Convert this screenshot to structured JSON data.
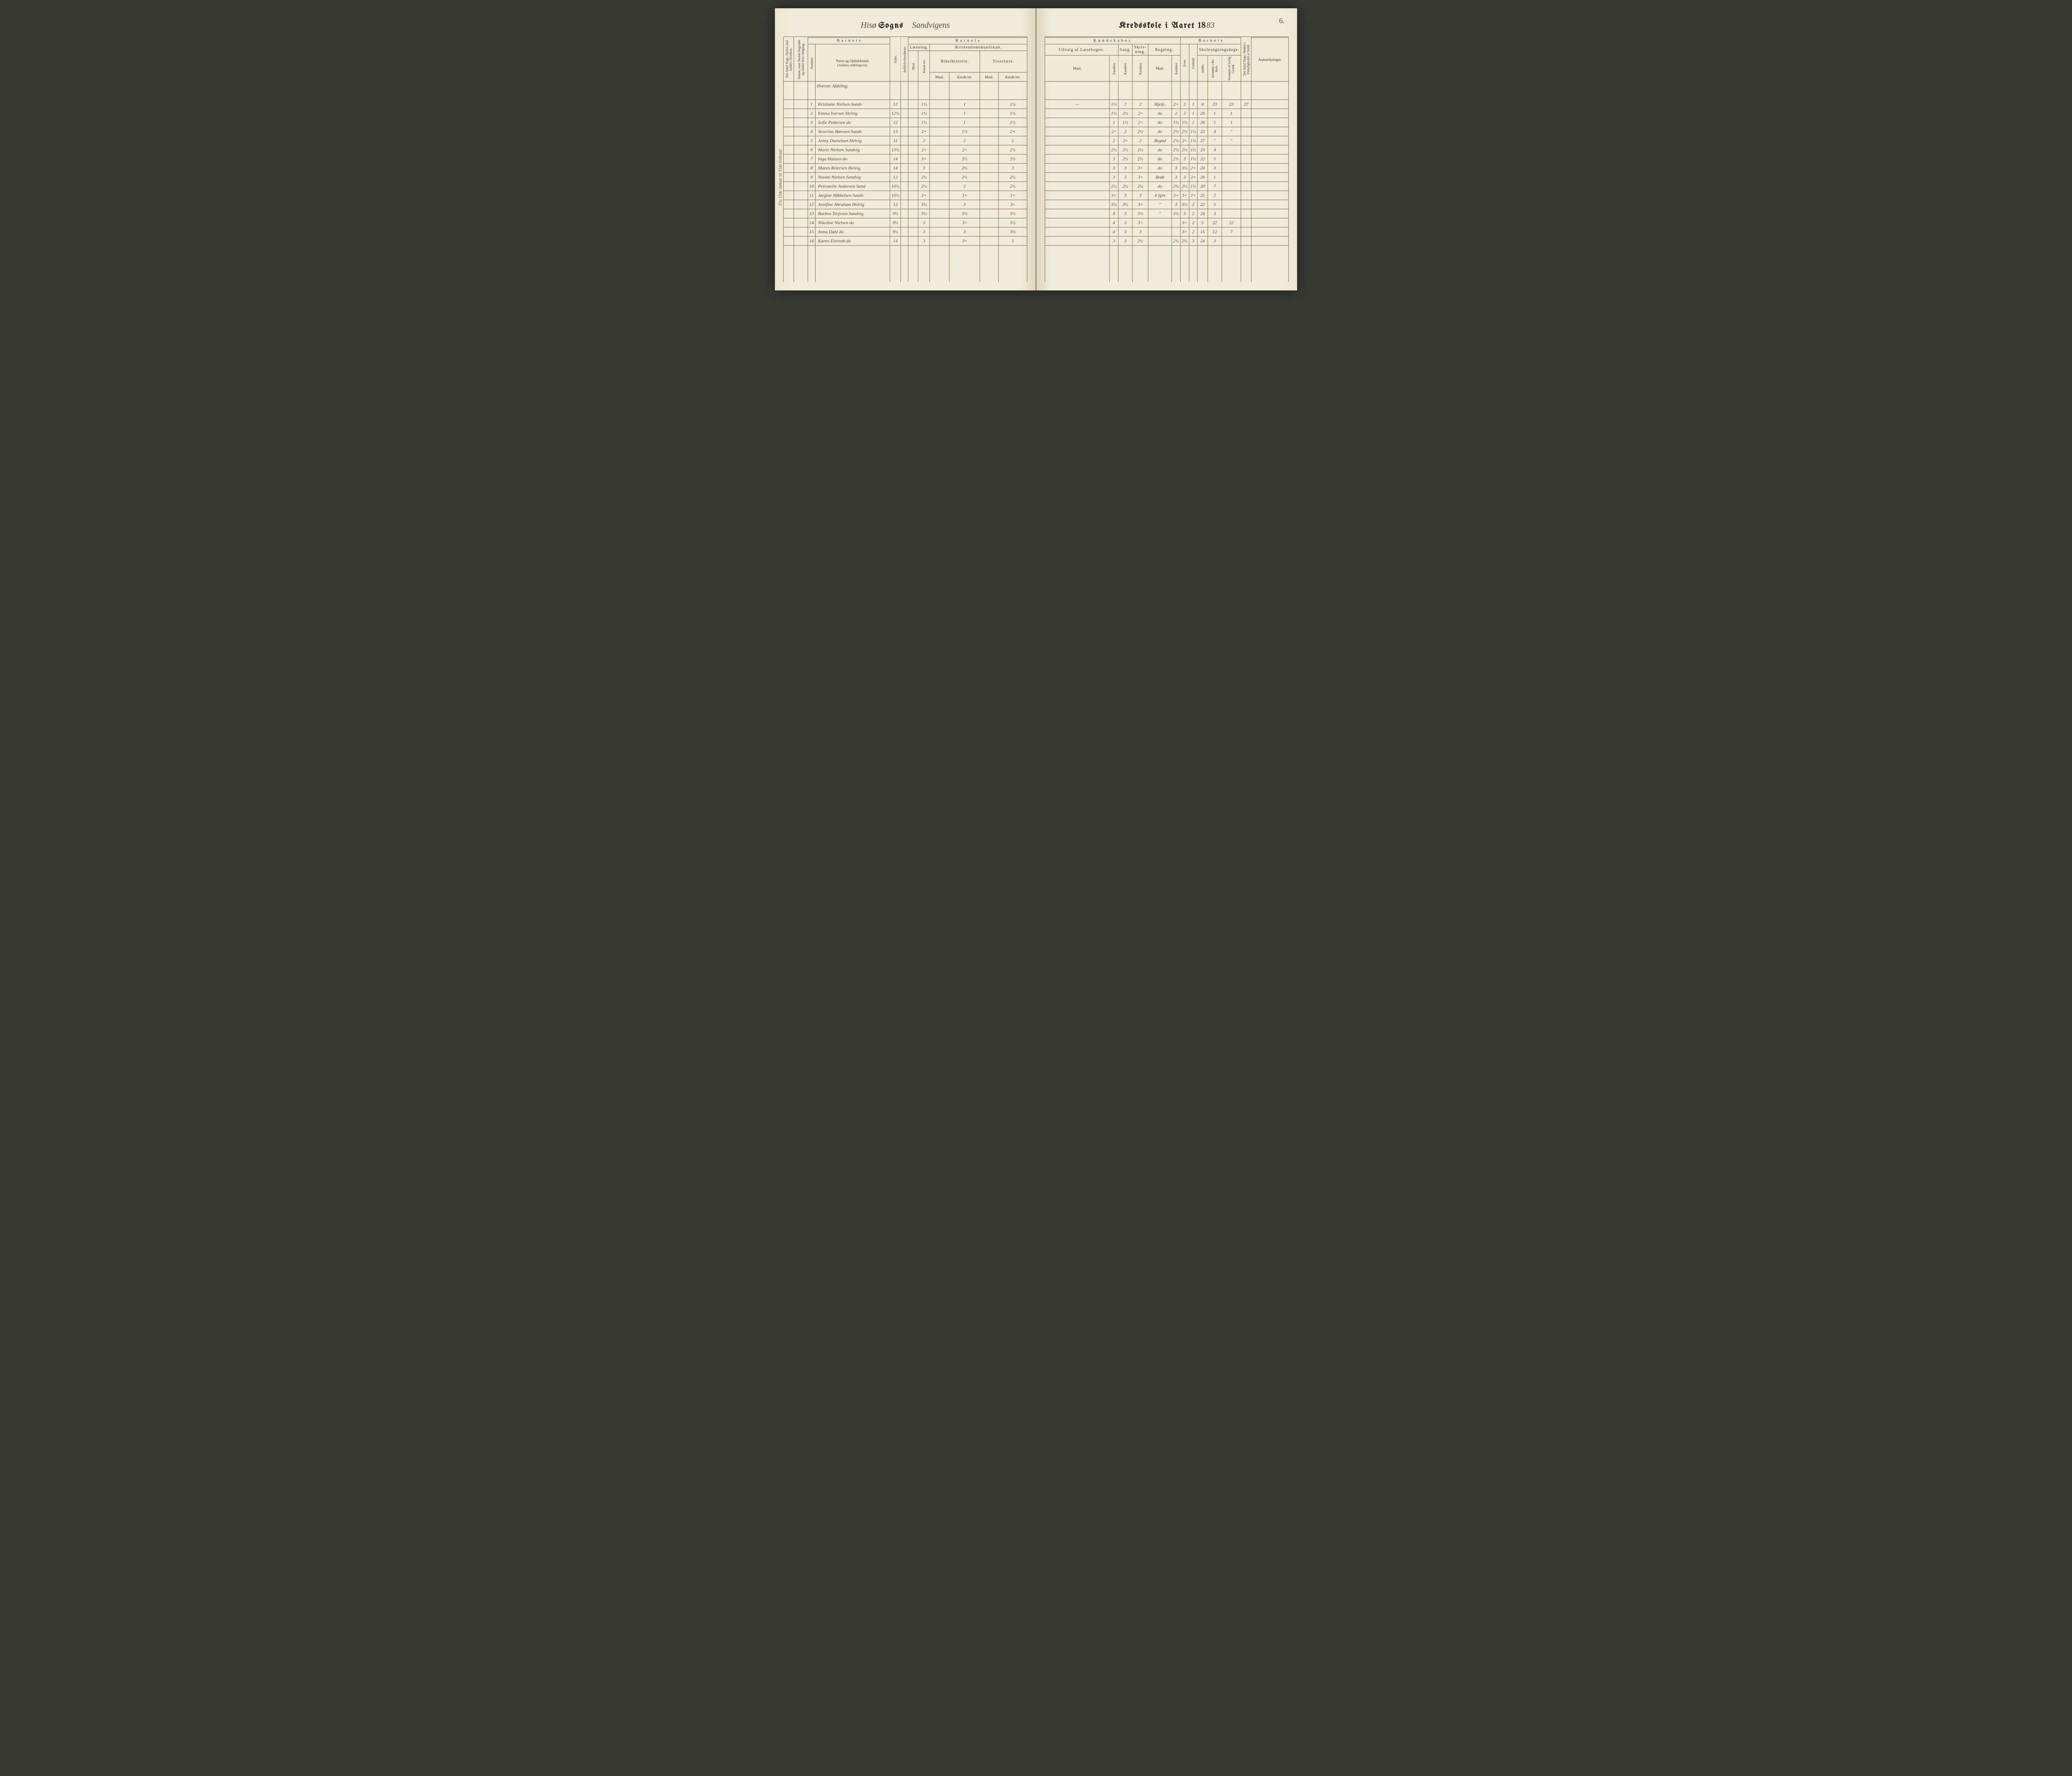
{
  "page_number": "6.",
  "title_left": {
    "script1": "Hisø",
    "print1": "Sogns",
    "script2": "Sandvigens"
  },
  "title_right": {
    "print": "Kredsskole i Aaret 18",
    "script_year": "83"
  },
  "side_note": "Fra 15de Januar til 15de Februar",
  "side_note2": "54",
  "section_heading": "Øverste Afdeling",
  "headers_left": {
    "barnets": "B a r n e t s",
    "antal_dage": "Det Antal Dage, Skolen skal holdes i Kredsen.",
    "datum": "Datum, naar Skolen begynder og slutter hver Omgang.",
    "nummer": "Nummer.",
    "navn": "Navn og Opholdssted.",
    "navn_sub": "(Anføres afdelingsvis).",
    "alder": "Alder.",
    "indskrev": "Indskrivelsesdatum.",
    "laesning": "Læsning.",
    "kristendom": "Kristendomskundskab.",
    "bibel": "Bibelhistorie.",
    "troes": "Troeslære.",
    "maal": "Maal.",
    "karakter": "Karak-ter."
  },
  "headers_right": {
    "kundskaber": "K u n d s k a b e r.",
    "barnets": "B a r n e t s",
    "udvalg": "Udvalg af Læsebogen.",
    "sang": "Sang.",
    "skriv": "Skriv-ning.",
    "regning": "Regning.",
    "maal": "Maal.",
    "karakter": "Karakter.",
    "evne": "Evne.",
    "forhold": "Forhold.",
    "skolesog": "Skolesøgningsdage.",
    "modte": "mødte.",
    "forsomte1": "forsømte i det Hele.",
    "forsomte2": "forsømte af lovlig Grund.",
    "antal_dage": "Det Antal Dage, Skolen i Virkeligheden er holdt.",
    "anm": "Anmærkninger."
  },
  "rows": [
    {
      "n": "1",
      "name": "Kristiane Nielsen Sandv",
      "age": "12",
      "laes": "1½",
      "bib_m": "1",
      "tro_m": "",
      "tro_k": "1½",
      "udv_m": "—",
      "udv_k": "1½",
      "sang": "2",
      "skr": "2",
      "reg_m": "Hjelp.",
      "reg_k": "2+",
      "evne": "2",
      "for": "1",
      "mod": "4",
      "f1": "23",
      "f2": "23",
      "ad": "27"
    },
    {
      "n": "2",
      "name": "Emma Iversen Helvig",
      "age": "12½",
      "laes": "1½",
      "bib_m": "1",
      "tro_m": "",
      "tro_k": "1½",
      "udv_m": "",
      "udv_k": "1½",
      "sang": "2½",
      "skr": "2÷",
      "reg_m": "do",
      "reg_k": "2",
      "evne": "2",
      "for": "1",
      "mod": "26",
      "f1": "1",
      "f2": "1",
      "ad": ""
    },
    {
      "n": "3",
      "name": "Sofie Pedersen    do",
      "age": "12",
      "laes": "1½",
      "bib_m": "1",
      "tro_m": "",
      "tro_k": "1½",
      "udv_m": "",
      "udv_k": "1",
      "sang": "1½",
      "skr": "2÷",
      "reg_m": "do",
      "reg_k": "1½",
      "evne": "1½",
      "for": "1",
      "mod": "26",
      "f1": "1",
      "f2": "1",
      "ad": ""
    },
    {
      "n": "4",
      "name": "Severine Børesen Sandv",
      "age": "13",
      "laes": "2+",
      "bib_m": "1½",
      "tro_m": "",
      "tro_k": "2+",
      "udv_m": "",
      "udv_k": "2÷",
      "sang": "2",
      "skr": "2½",
      "reg_m": "do",
      "reg_k": "2½",
      "evne": "2½",
      "for": "1½",
      "mod": "23",
      "f1": "4",
      "f2": "\"",
      "ad": ""
    },
    {
      "n": "5",
      "name": "Jenny Danielsen Helvig",
      "age": "11",
      "laes": "2",
      "bib_m": "2",
      "tro_m": "",
      "tro_k": "2",
      "udv_m": "",
      "udv_k": "2",
      "sang": "2÷",
      "skr": "2",
      "reg_m": "Begnd",
      "reg_k": "2½",
      "evne": "2÷",
      "for": "1½",
      "mod": "27",
      "f1": "\"",
      "f2": "\"",
      "ad": ""
    },
    {
      "n": "6",
      "name": "Marie Nielsen Sandvig",
      "age": "13½",
      "laes": "2÷",
      "bib_m": "2÷",
      "tro_m": "",
      "tro_k": "2½",
      "udv_m": "",
      "udv_k": "2½",
      "sang": "2½",
      "skr": "2½",
      "reg_m": "do",
      "reg_k": "2½",
      "evne": "2½",
      "for": "1½",
      "mod": "23",
      "f1": "4",
      "f2": "",
      "ad": ""
    },
    {
      "n": "7",
      "name": "Inga Hansen    do",
      "age": "14",
      "laes": "3+",
      "bib_m": "2½",
      "tro_m": "",
      "tro_k": "2½",
      "udv_m": "",
      "udv_k": "3",
      "sang": "2½",
      "skr": "2½",
      "reg_m": "do",
      "reg_k": "2½",
      "evne": "3",
      "for": "1½",
      "mod": "22",
      "f1": "5",
      "f2": "",
      "ad": ""
    },
    {
      "n": "8",
      "name": "Maren Reiersen Helvig",
      "age": "14",
      "laes": "3",
      "bib_m": "2½",
      "tro_m": "",
      "tro_k": "3",
      "udv_m": "",
      "udv_k": "3",
      "sang": "3",
      "skr": "3+",
      "reg_m": "do",
      "reg_k": "3",
      "evne": "3½",
      "for": "2+",
      "mod": "24",
      "f1": "3",
      "f2": "",
      "ad": ""
    },
    {
      "n": "9",
      "name": "Noomi Nielsen Sandvig",
      "age": "12",
      "laes": "2½",
      "bib_m": "2½",
      "tro_m": "",
      "tro_k": "2½",
      "udv_m": "",
      "udv_k": "3",
      "sang": "3",
      "skr": "3÷",
      "reg_m": "Brøk",
      "reg_k": "3",
      "evne": "3",
      "for": "2+",
      "mod": "26",
      "f1": "1",
      "f2": "",
      "ad": ""
    },
    {
      "n": "10",
      "name": "Petronelle Andersen Sand",
      "age": "10½",
      "laes": "2½",
      "bib_m": "2",
      "tro_m": "",
      "tro_k": "2½",
      "udv_m": "",
      "udv_k": "2½",
      "sang": "2½",
      "skr": "2½",
      "reg_m": "do",
      "reg_k": "2½",
      "evne": "2½",
      "for": "1½",
      "mod": "20",
      "f1": "7",
      "f2": "",
      "ad": ""
    },
    {
      "n": "11",
      "name": "Jørgine Mikkelsen Sandv",
      "age": "10½",
      "laes": "3+",
      "bib_m": "3+",
      "tro_m": "",
      "tro_k": "3+",
      "udv_m": "",
      "udv_k": "3+",
      "sang": "3",
      "skr": "3",
      "reg_m": "4 Sprt",
      "reg_k": "3+",
      "evne": "3+",
      "for": "2+",
      "mod": "25",
      "f1": "2",
      "f2": "",
      "ad": ""
    },
    {
      "n": "12",
      "name": "Josefine Abraham Helvig",
      "age": "12",
      "laes": "3½",
      "bib_m": "3",
      "tro_m": "",
      "tro_k": "3÷",
      "udv_m": "",
      "udv_k": "3½",
      "sang": "3½",
      "skr": "3÷",
      "reg_m": "\"",
      "reg_k": "3",
      "evne": "3½",
      "for": "2",
      "mod": "22",
      "f1": "5",
      "f2": "",
      "ad": ""
    },
    {
      "n": "13",
      "name": "Barbra Terjesen Sandvig",
      "age": "9½",
      "laes": "3½",
      "bib_m": "3½",
      "tro_m": "",
      "tro_k": "3½",
      "udv_m": "",
      "udv_k": "4",
      "sang": "3",
      "skr": "3½",
      "reg_m": "\"",
      "reg_k": "3½",
      "evne": "3",
      "for": "2",
      "mod": "24",
      "f1": "3",
      "f2": "",
      "ad": ""
    },
    {
      "n": "14",
      "name": "Nikoline Nielsen   do",
      "age": "9½",
      "laes": "3",
      "bib_m": "3÷",
      "tro_m": "",
      "tro_k": "3½",
      "udv_m": "",
      "udv_k": "4",
      "sang": "3",
      "skr": "3÷",
      "reg_m": "",
      "reg_k": "",
      "evne": "3+",
      "for": "2",
      "mod": "5",
      "f1": "22",
      "f2": "22",
      "ad": ""
    },
    {
      "n": "15",
      "name": "Anna Dahl     do",
      "age": "9½",
      "laes": "3",
      "bib_m": "3",
      "tro_m": "",
      "tro_k": "3½",
      "udv_m": "",
      "udv_k": "4",
      "sang": "3",
      "skr": "3",
      "reg_m": "",
      "reg_k": "",
      "evne": "3+",
      "for": "2",
      "mod": "15",
      "f1": "12",
      "f2": "7",
      "ad": ""
    },
    {
      "n": "16",
      "name": "Karen Elstvedt   do",
      "age": "14",
      "laes": "3",
      "bib_m": "3÷",
      "tro_m": "",
      "tro_k": "3",
      "udv_m": "",
      "udv_k": "3",
      "sang": "3",
      "skr": "2½",
      "reg_m": "",
      "reg_k": "2½",
      "evne": "2½",
      "for": "3",
      "mod": "24",
      "f1": "3",
      "f2": "",
      "ad": ""
    }
  ]
}
